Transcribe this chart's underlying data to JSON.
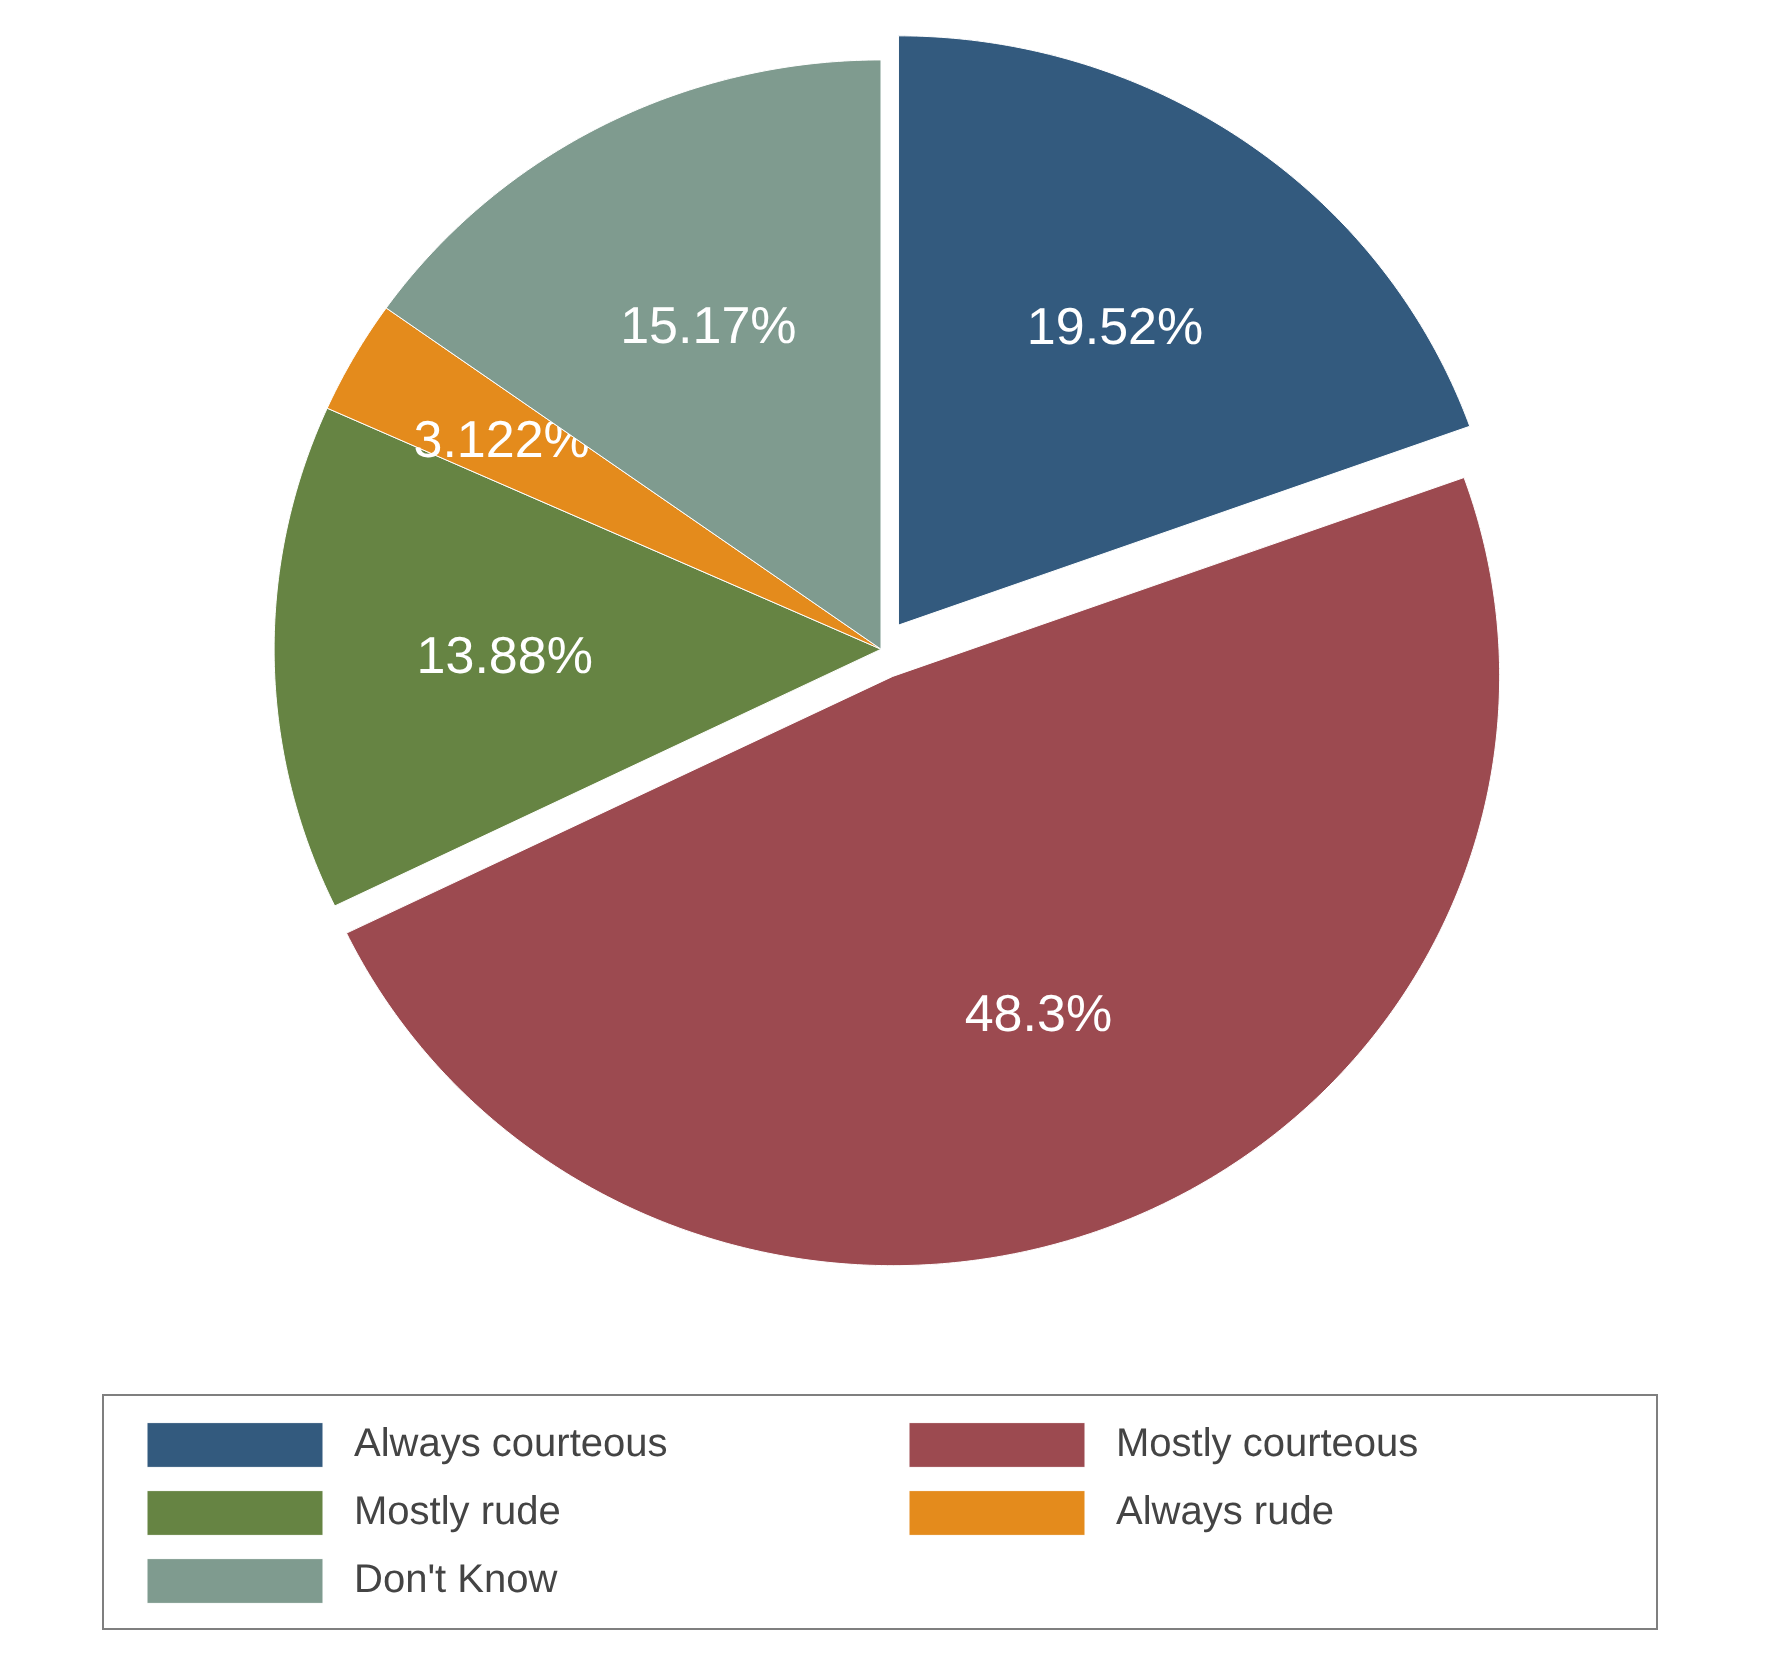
{
  "chart_data": {
    "type": "pie",
    "categories": [
      "Always courteous",
      "Mostly courteous",
      "Mostly rude",
      "Always rude",
      "Don't Know"
    ],
    "values": [
      19.52,
      48.3,
      13.88,
      3.122,
      15.17
    ],
    "colors": [
      "#335a7e",
      "#9c4a50",
      "#668443",
      "#e48b1c",
      "#7f9b8f"
    ],
    "value_labels": [
      "19.52%",
      "48.3%",
      "13.88%",
      "3.122%",
      "15.17%"
    ],
    "legend": "bottom"
  }
}
